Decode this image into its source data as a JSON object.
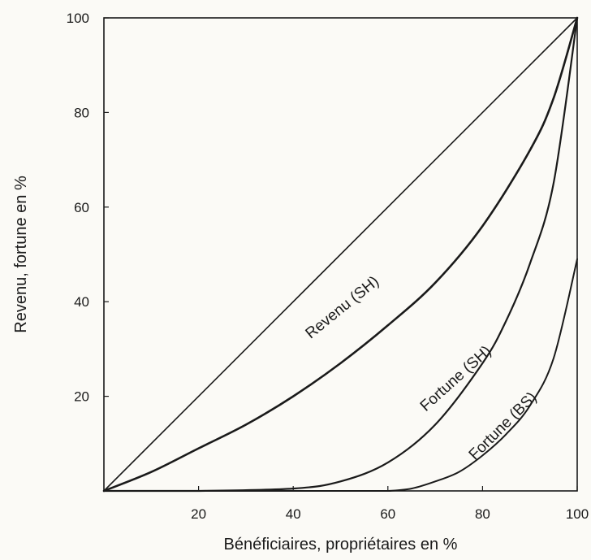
{
  "chart_data": {
    "type": "line",
    "title": "",
    "xlabel": "Bénéficiaires, propriétaires en %",
    "ylabel": "Revenu, fortune en %",
    "xlim": [
      0,
      100
    ],
    "ylim": [
      0,
      100
    ],
    "x_ticks": [
      "20",
      "40",
      "60",
      "80",
      "100"
    ],
    "y_ticks": [
      "20",
      "40",
      "60",
      "80",
      "100"
    ],
    "grid": false,
    "legend": "none",
    "colors": {
      "line": "#1a1a1a",
      "background": "#fbfaf6"
    },
    "series": [
      {
        "x": [
          0,
          100
        ],
        "y": [
          0,
          100
        ]
      },
      {
        "name": "Revenu (SH)",
        "label": "Revenu (SH)",
        "x": [
          0,
          10,
          20,
          30,
          40,
          50,
          60,
          70,
          80,
          90,
          95,
          100
        ],
        "y": [
          0,
          4,
          9,
          14,
          20,
          27,
          35,
          44,
          56,
          72,
          83,
          100
        ]
      },
      {
        "name": "Fortune (SH)",
        "label": "Fortune (SH)",
        "x": [
          0,
          20,
          40,
          50,
          60,
          70,
          80,
          85,
          90,
          95,
          100
        ],
        "y": [
          0,
          0,
          0.5,
          2,
          6,
          14,
          27,
          36,
          48,
          65,
          100
        ]
      },
      {
        "name": "Fortune (BS)",
        "label": "Fortune (BS)",
        "x": [
          0,
          55,
          60,
          65,
          70,
          75,
          80,
          85,
          90,
          95,
          100
        ],
        "y": [
          0,
          0,
          0,
          0.5,
          2,
          4,
          7.5,
          12,
          18,
          28,
          49
        ]
      }
    ]
  }
}
